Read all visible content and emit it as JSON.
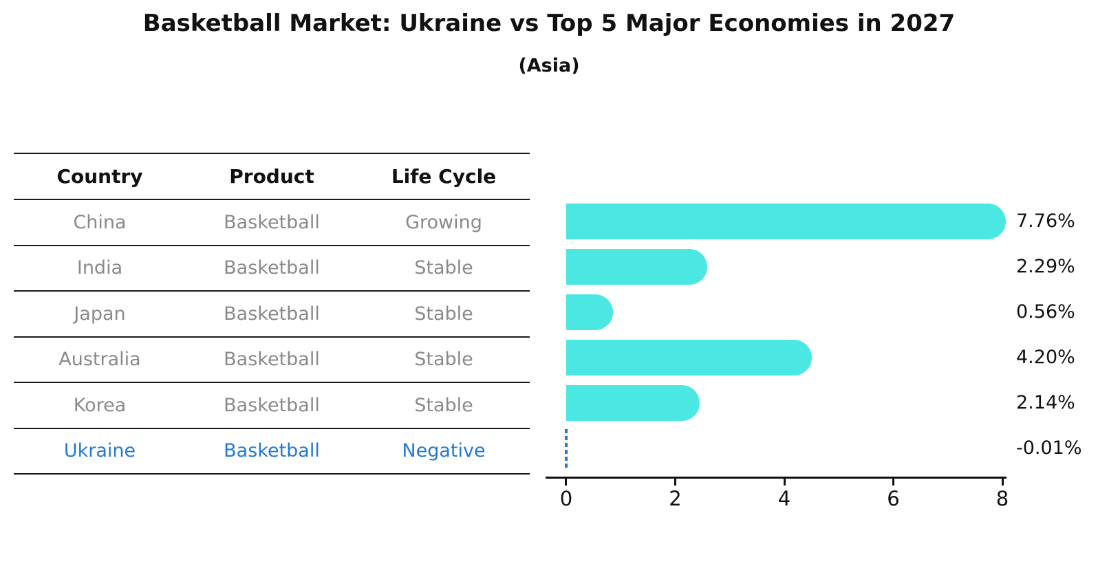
{
  "title": "Basketball Market: Ukraine vs Top 5 Major Economies in 2027",
  "subtitle": "(Asia)",
  "table": {
    "headers": {
      "country": "Country",
      "product": "Product",
      "life_cycle": "Life Cycle"
    },
    "rows": [
      {
        "country": "China",
        "product": "Basketball",
        "life_cycle": "Growing"
      },
      {
        "country": "India",
        "product": "Basketball",
        "life_cycle": "Stable"
      },
      {
        "country": "Japan",
        "product": "Basketball",
        "life_cycle": "Stable"
      },
      {
        "country": "Australia",
        "product": "Basketball",
        "life_cycle": "Stable"
      },
      {
        "country": "Korea",
        "product": "Basketball",
        "life_cycle": "Stable"
      },
      {
        "country": "Ukraine",
        "product": "Basketball",
        "life_cycle": "Negative"
      }
    ]
  },
  "chart_data": {
    "type": "bar",
    "orientation": "horizontal",
    "title": "Basketball Market: Ukraine vs Top 5 Major Economies in 2027",
    "subtitle": "(Asia)",
    "categories": [
      "China",
      "India",
      "Japan",
      "Australia",
      "Korea",
      "Ukraine"
    ],
    "values": [
      7.76,
      2.29,
      0.56,
      4.2,
      2.14,
      -0.01
    ],
    "value_labels": [
      "7.76%",
      "2.29%",
      "0.56%",
      "4.20%",
      "2.14%",
      "-0.01%"
    ],
    "xlim": [
      0,
      8
    ],
    "x_ticks": [
      "0",
      "2",
      "4",
      "6",
      "8"
    ],
    "grid": false,
    "legend": false,
    "bar_color": "#4ae7e3",
    "highlight_color": "#2379d2",
    "highlight_category": "Ukraine"
  },
  "colors": {
    "bar": "#4ae7e3",
    "highlight_blue": "#2379d2",
    "table_text_gray": "#8a8a8a",
    "heading_text": "#111111",
    "rule_line": "#1a1a1a",
    "background": "#ffffff"
  }
}
